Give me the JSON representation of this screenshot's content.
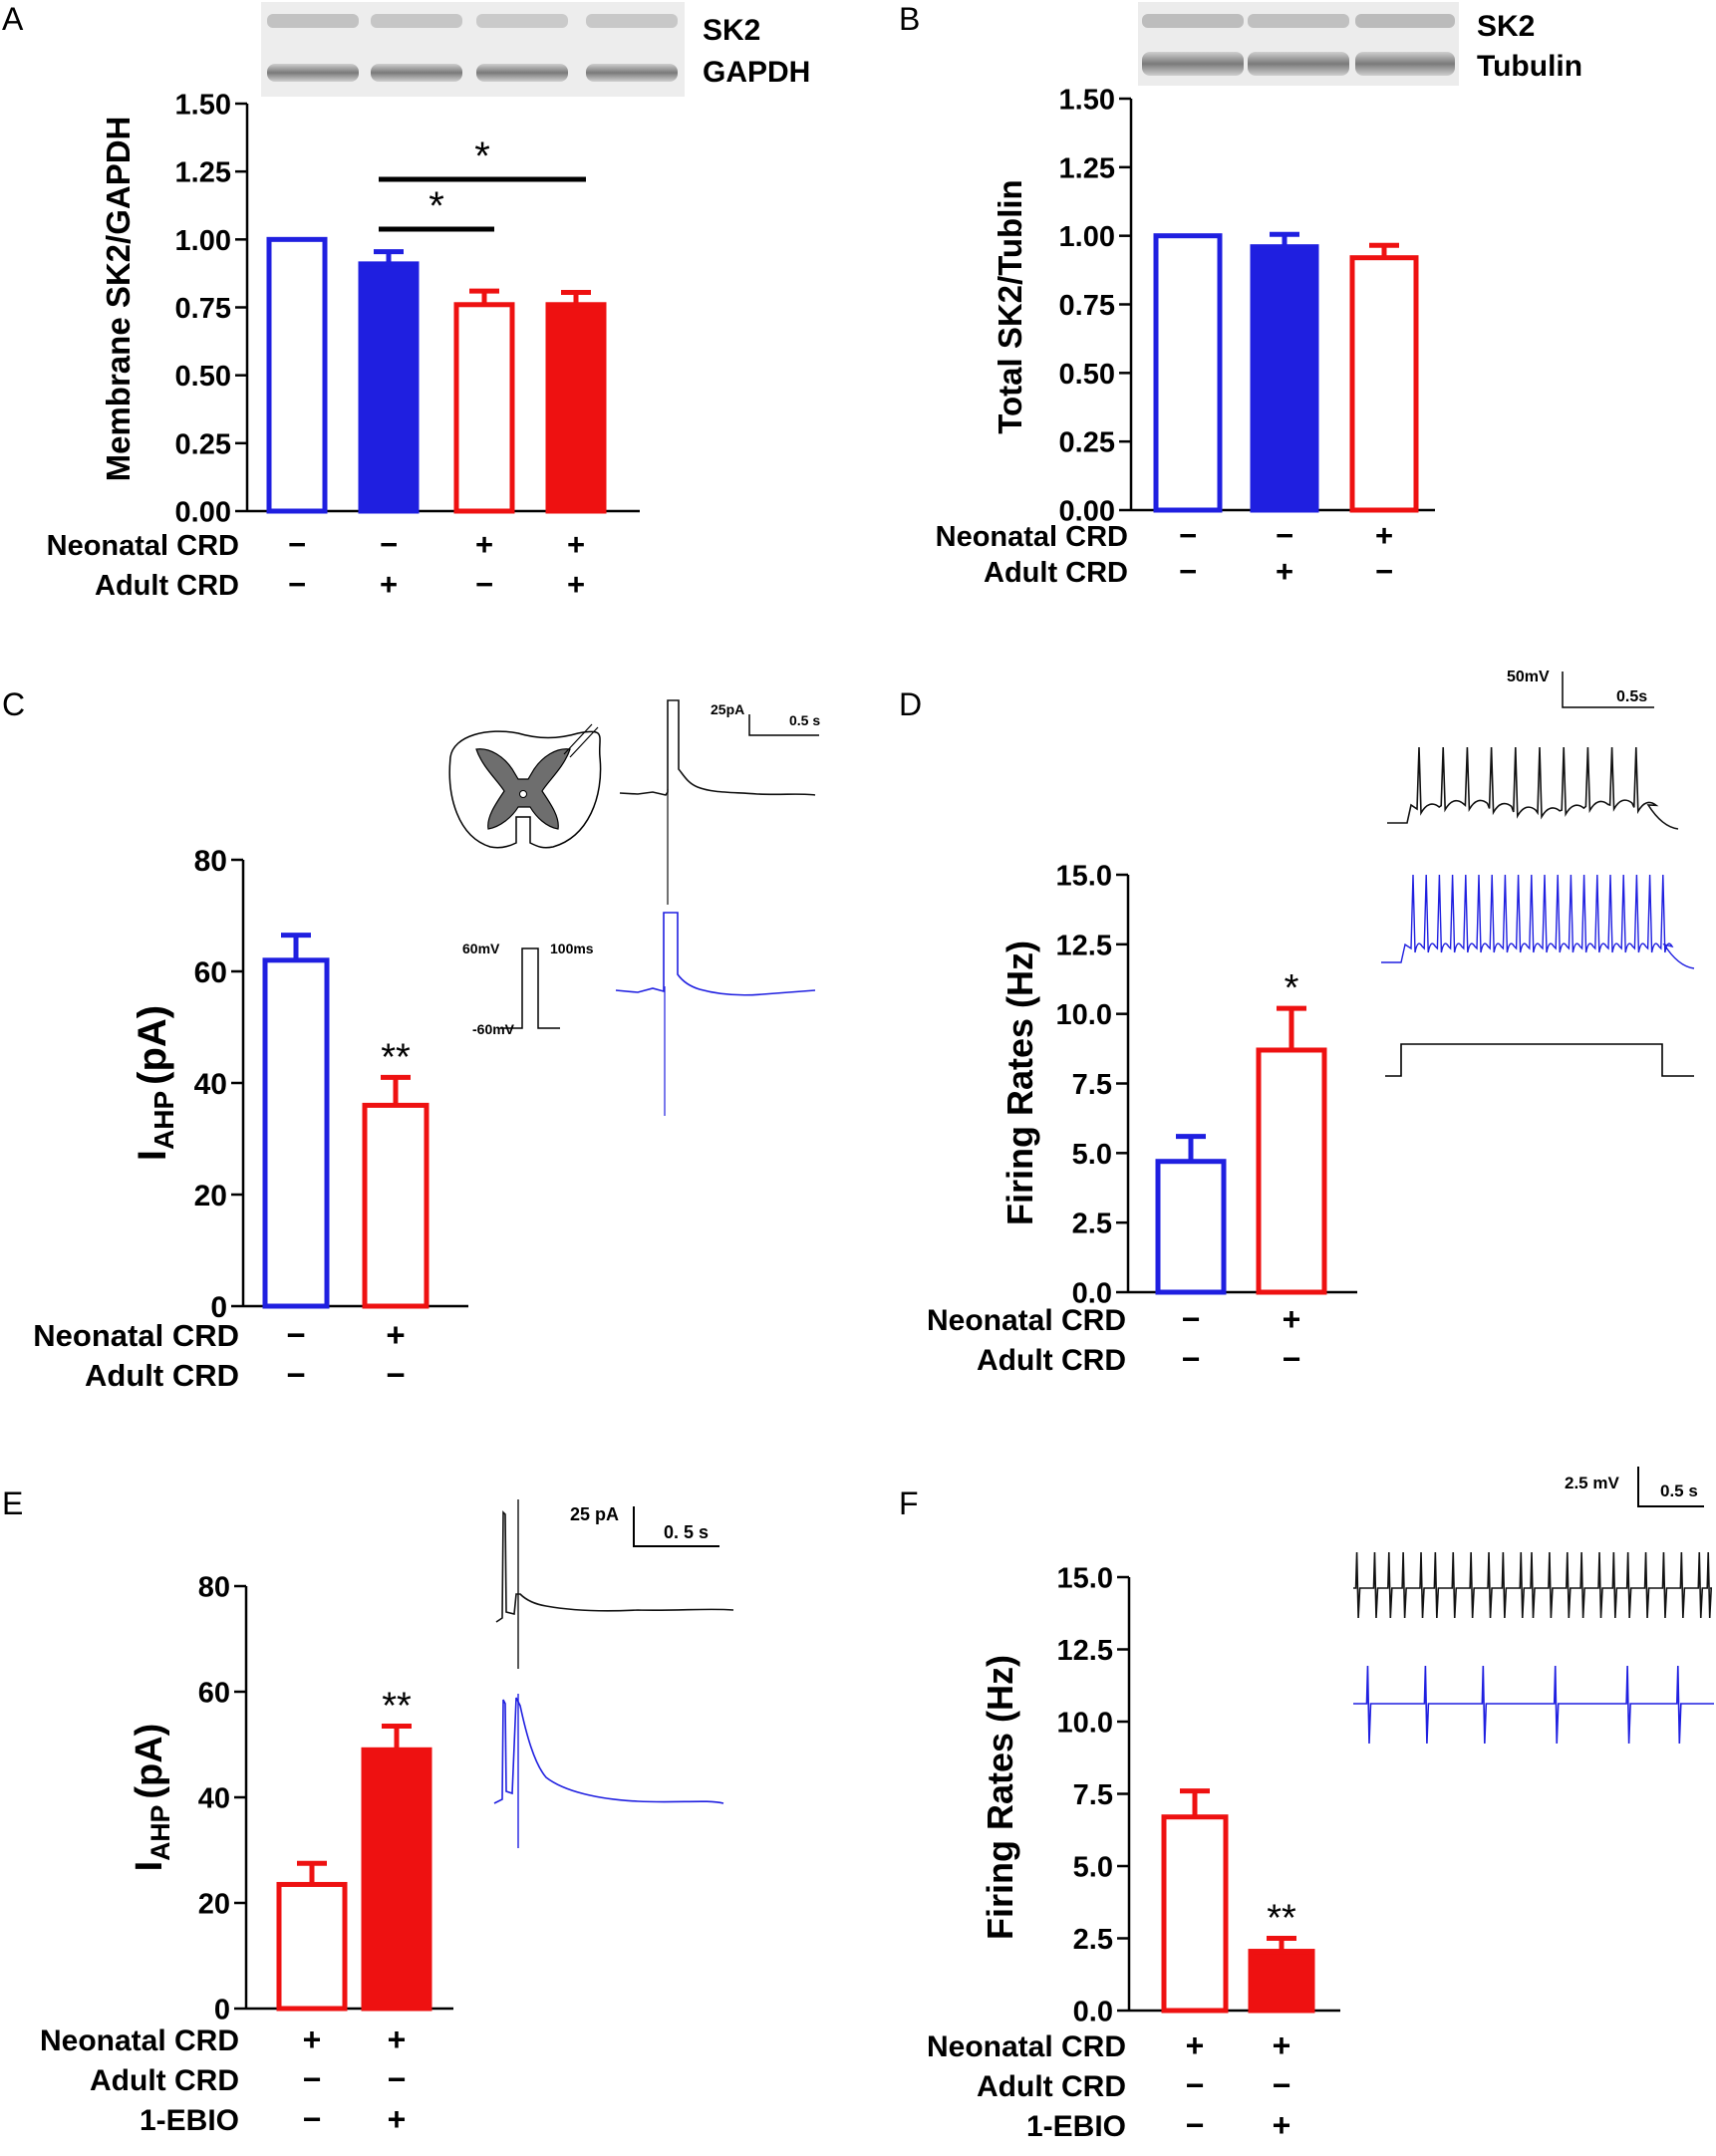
{
  "figure": {
    "panels": [
      "A",
      "B",
      "C",
      "D",
      "E",
      "F"
    ]
  },
  "colors": {
    "blue": "#1f1fe0",
    "red": "#ee1111",
    "black": "#000000",
    "gray": "#777777"
  },
  "blot_a": {
    "labels": [
      "SK2",
      "GAPDH"
    ]
  },
  "blot_b": {
    "labels": [
      "SK2",
      "Tubulin"
    ]
  },
  "inset_c": {
    "scale_current": "25pA",
    "scale_time": "0.5 s",
    "step_high": "60mV",
    "step_low": "-60mV",
    "step_duration": "100ms"
  },
  "inset_d": {
    "scale_voltage": "50mV",
    "scale_time": "0.5s"
  },
  "inset_e": {
    "scale_current": "25 pA",
    "scale_time": "0. 5 s"
  },
  "inset_f": {
    "scale_voltage": "2.5 mV",
    "scale_time": "0.5 s"
  },
  "chart_data": [
    {
      "panel": "A",
      "type": "bar",
      "ylabel": "Membrane SK2/GAPDH",
      "ylim": [
        0,
        1.5
      ],
      "yticks": [
        "0.00",
        "0.25",
        "0.50",
        "0.75",
        "1.00",
        "1.25",
        "1.50"
      ],
      "values": [
        1.0,
        0.91,
        0.76,
        0.76
      ],
      "errors": [
        0,
        0.045,
        0.05,
        0.045
      ],
      "fills": [
        "none",
        "blue",
        "none",
        "red"
      ],
      "strokes": [
        "blue",
        "blue",
        "red",
        "red"
      ],
      "conditions": [
        {
          "label": "Neonatal CRD",
          "marks": [
            "−",
            "−",
            "+",
            "+"
          ]
        },
        {
          "label": "Adult CRD",
          "marks": [
            "−",
            "+",
            "−",
            "+"
          ]
        }
      ],
      "significance": [
        {
          "from": 1,
          "to": 2,
          "label": "*"
        },
        {
          "from": 1,
          "to": 3,
          "label": "*"
        }
      ]
    },
    {
      "panel": "B",
      "type": "bar",
      "ylabel": "Total SK2/Tublin",
      "ylim": [
        0,
        1.5
      ],
      "yticks": [
        "0.00",
        "0.25",
        "0.50",
        "0.75",
        "1.00",
        "1.25",
        "1.50"
      ],
      "values": [
        1.0,
        0.96,
        0.92
      ],
      "errors": [
        0,
        0.045,
        0.045
      ],
      "fills": [
        "none",
        "blue",
        "none"
      ],
      "strokes": [
        "blue",
        "blue",
        "red"
      ],
      "conditions": [
        {
          "label": "Neonatal CRD",
          "marks": [
            "−",
            "−",
            "+"
          ]
        },
        {
          "label": "Adult CRD",
          "marks": [
            "−",
            "+",
            "−"
          ]
        }
      ],
      "significance": []
    },
    {
      "panel": "C",
      "type": "bar",
      "ylabel": "I",
      "ylabel_sub": "AHP",
      "ylabel_unit": "(pA)",
      "ylim": [
        0,
        80
      ],
      "yticks": [
        "0",
        "20",
        "40",
        "60",
        "80"
      ],
      "values": [
        62,
        36
      ],
      "errors": [
        4.5,
        5
      ],
      "fills": [
        "none",
        "none"
      ],
      "strokes": [
        "blue",
        "red"
      ],
      "conditions": [
        {
          "label": "Neonatal CRD",
          "marks": [
            "−",
            "+"
          ]
        },
        {
          "label": "Adult CRD",
          "marks": [
            "−",
            "−"
          ]
        }
      ],
      "bar_labels": [
        "",
        "**"
      ]
    },
    {
      "panel": "D",
      "type": "bar",
      "ylabel": "Firing Rates (Hz)",
      "ylim": [
        0,
        15
      ],
      "yticks": [
        "0.0",
        "2.5",
        "5.0",
        "7.5",
        "10.0",
        "12.5",
        "15.0"
      ],
      "values": [
        4.7,
        8.7
      ],
      "errors": [
        0.9,
        1.5
      ],
      "fills": [
        "none",
        "none"
      ],
      "strokes": [
        "blue",
        "red"
      ],
      "conditions": [
        {
          "label": "Neonatal CRD",
          "marks": [
            "−",
            "+"
          ]
        },
        {
          "label": "Adult CRD",
          "marks": [
            "−",
            "−"
          ]
        }
      ],
      "bar_labels": [
        "",
        "*"
      ]
    },
    {
      "panel": "E",
      "type": "bar",
      "ylabel": "I",
      "ylabel_sub": "AHP",
      "ylabel_unit": "(pA)",
      "ylim": [
        0,
        80
      ],
      "yticks": [
        "0",
        "20",
        "40",
        "60",
        "80"
      ],
      "values": [
        23.5,
        49
      ],
      "errors": [
        4,
        4.5
      ],
      "fills": [
        "none",
        "red"
      ],
      "strokes": [
        "red",
        "red"
      ],
      "conditions": [
        {
          "label": "Neonatal CRD",
          "marks": [
            "+",
            "+"
          ]
        },
        {
          "label": "Adult CRD",
          "marks": [
            "−",
            "−"
          ]
        },
        {
          "label": "1-EBIO",
          "marks": [
            "−",
            "+"
          ]
        }
      ],
      "bar_labels": [
        "",
        "**"
      ]
    },
    {
      "panel": "F",
      "type": "bar",
      "ylabel": "Firing Rates (Hz)",
      "ylim": [
        0,
        15
      ],
      "yticks": [
        "0.0",
        "2.5",
        "5.0",
        "7.5",
        "10.0",
        "12.5",
        "15.0"
      ],
      "values": [
        6.7,
        2.05
      ],
      "errors": [
        0.9,
        0.45
      ],
      "fills": [
        "none",
        "red"
      ],
      "strokes": [
        "red",
        "red"
      ],
      "conditions": [
        {
          "label": "Neonatal CRD",
          "marks": [
            "+",
            "+"
          ]
        },
        {
          "label": "Adult CRD",
          "marks": [
            "−",
            "−"
          ]
        },
        {
          "label": "1-EBIO",
          "marks": [
            "−",
            "+"
          ]
        }
      ],
      "bar_labels": [
        "",
        "**"
      ]
    }
  ]
}
